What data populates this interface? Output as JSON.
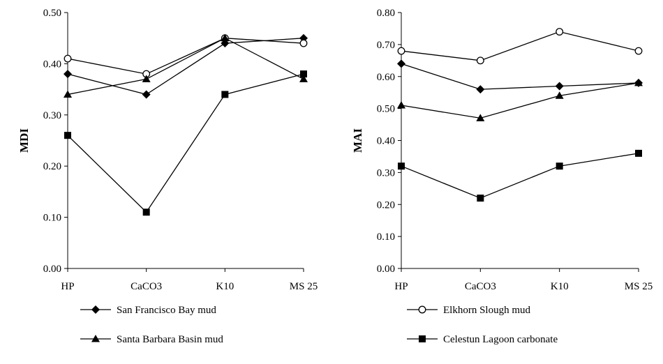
{
  "chart_data": [
    {
      "type": "line",
      "ylabel": "MDI",
      "xlabel": "",
      "categories": [
        "HP",
        "CaCO3",
        "K10",
        "MS 25"
      ],
      "ylim": [
        0.0,
        0.5
      ],
      "yticks": [
        "0.00",
        "0.10",
        "0.20",
        "0.30",
        "0.40",
        "0.50"
      ],
      "grid": false,
      "series": [
        {
          "name": "San Francisco Bay mud",
          "marker": "diamond-filled",
          "values": [
            0.38,
            0.34,
            0.44,
            0.45
          ]
        },
        {
          "name": "Elkhorn Slough mud",
          "marker": "circle-open",
          "values": [
            0.41,
            0.38,
            0.45,
            0.44
          ]
        },
        {
          "name": "Santa Barbara Basin mud",
          "marker": "triangle-filled",
          "values": [
            0.34,
            0.37,
            0.45,
            0.37
          ]
        },
        {
          "name": "Celestun Lagoon carbonate",
          "marker": "square-filled",
          "values": [
            0.26,
            0.11,
            0.34,
            0.38
          ]
        }
      ]
    },
    {
      "type": "line",
      "ylabel": "MAI",
      "xlabel": "",
      "categories": [
        "HP",
        "CaCO3",
        "K10",
        "MS 25"
      ],
      "ylim": [
        0.0,
        0.8
      ],
      "yticks": [
        "0.00",
        "0.10",
        "0.20",
        "0.30",
        "0.40",
        "0.50",
        "0.60",
        "0.70",
        "0.80"
      ],
      "grid": false,
      "series": [
        {
          "name": "San Francisco Bay mud",
          "marker": "diamond-filled",
          "values": [
            0.64,
            0.56,
            0.57,
            0.58
          ]
        },
        {
          "name": "Elkhorn Slough mud",
          "marker": "circle-open",
          "values": [
            0.68,
            0.65,
            0.74,
            0.68
          ]
        },
        {
          "name": "Santa Barbara Basin mud",
          "marker": "triangle-filled",
          "values": [
            0.51,
            0.47,
            0.54,
            0.58
          ]
        },
        {
          "name": "Celestun Lagoon carbonate",
          "marker": "square-filled",
          "values": [
            0.32,
            0.22,
            0.32,
            0.36
          ]
        }
      ]
    }
  ],
  "legend": {
    "placement": "bottom",
    "items": [
      {
        "label": "San Francisco Bay mud",
        "marker": "diamond-filled"
      },
      {
        "label": "Elkhorn Slough mud",
        "marker": "circle-open"
      },
      {
        "label": "Santa Barbara Basin mud",
        "marker": "triangle-filled"
      },
      {
        "label": "Celestun Lagoon carbonate",
        "marker": "square-filled"
      }
    ]
  },
  "colors": {
    "line": "#000000",
    "background": "#ffffff"
  }
}
